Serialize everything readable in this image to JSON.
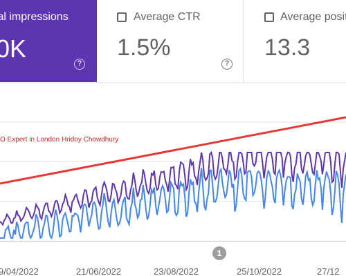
{
  "metrics": {
    "impressions": {
      "label": "tal impressions",
      "value": "0K",
      "help": "?",
      "color": "#5e35b1"
    },
    "ctr": {
      "label": "Average CTR",
      "value": "1.5%",
      "help": "?"
    },
    "position": {
      "label": "Average positi",
      "value": "13.3"
    }
  },
  "chart_data": {
    "type": "line",
    "annotation": "O Expert in London Hridoy Chowdhury",
    "x_ticks": [
      "9/04/2022",
      "21/06/2022",
      "23/08/2022",
      "25/10/2022",
      "27/12"
    ],
    "event_marker": "1",
    "colors": {
      "impressions": "#5e35b1",
      "clicks": "#4285f4",
      "trend": "#e53935"
    }
  }
}
